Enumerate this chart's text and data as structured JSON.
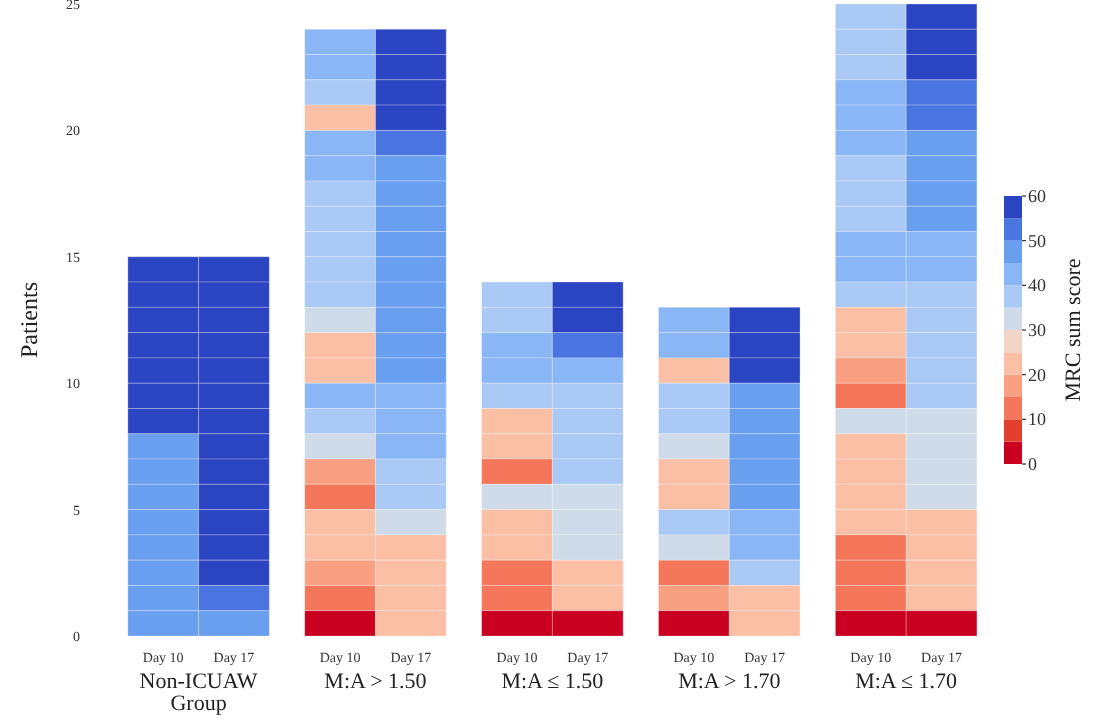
{
  "chart_data": {
    "type": "heatmap",
    "ylabel": "Patients",
    "clabel": "MRC sum score",
    "categories": [
      "Day 10",
      "Day 17",
      "Day 10",
      "Day 17",
      "Day 10",
      "Day 17",
      "Day 10",
      "Day 17",
      "Day 10",
      "Day 17"
    ],
    "annotations": [
      "Non-ICUAW Group",
      "M:A > 1.50",
      "M:A ≤ 1.50",
      "M:A > 1.70",
      "M:A ≤ 1.70"
    ],
    "ylim": [
      0,
      25
    ],
    "yticks": [
      0,
      5,
      10,
      15,
      20,
      25
    ],
    "clim": [
      0,
      60
    ],
    "cticks": [
      0,
      10,
      20,
      30,
      40,
      50,
      60
    ],
    "cells": [
      [
        null,
        null,
        null,
        null,
        null,
        null,
        null,
        null,
        37.5,
        57.5
      ],
      [
        null,
        null,
        42.5,
        57.5,
        null,
        null,
        null,
        null,
        37.5,
        57.5
      ],
      [
        null,
        null,
        42.5,
        57.5,
        null,
        null,
        null,
        null,
        37.5,
        57.5
      ],
      [
        null,
        null,
        37.5,
        57.5,
        null,
        null,
        null,
        null,
        42.5,
        52.5
      ],
      [
        null,
        null,
        22.5,
        57.5,
        null,
        null,
        null,
        null,
        42.5,
        52.5
      ],
      [
        null,
        null,
        42.5,
        52.5,
        null,
        null,
        null,
        null,
        42.5,
        47.5
      ],
      [
        null,
        null,
        42.5,
        47.5,
        null,
        null,
        null,
        null,
        37.5,
        47.5
      ],
      [
        null,
        null,
        37.5,
        47.5,
        null,
        null,
        null,
        null,
        37.5,
        47.5
      ],
      [
        null,
        null,
        37.5,
        47.5,
        null,
        null,
        null,
        null,
        37.5,
        47.5
      ],
      [
        null,
        null,
        37.5,
        47.5,
        null,
        null,
        null,
        null,
        42.5,
        42.5
      ],
      [
        57.5,
        57.5,
        37.5,
        47.5,
        null,
        null,
        null,
        null,
        42.5,
        42.5
      ],
      [
        57.5,
        57.5,
        37.5,
        47.5,
        37.5,
        57.5,
        null,
        null,
        37.5,
        37.5
      ],
      [
        57.5,
        57.5,
        32.5,
        47.5,
        37.5,
        57.5,
        42.5,
        57.5,
        22.5,
        37.5
      ],
      [
        57.5,
        57.5,
        22.5,
        47.5,
        42.5,
        52.5,
        42.5,
        57.5,
        22.5,
        37.5
      ],
      [
        57.5,
        57.5,
        22.5,
        47.5,
        42.5,
        42.5,
        22.5,
        57.5,
        17.5,
        37.5
      ],
      [
        57.5,
        57.5,
        42.5,
        42.5,
        37.5,
        37.5,
        37.5,
        47.5,
        12.5,
        37.5
      ],
      [
        57.5,
        57.5,
        37.5,
        42.5,
        22.5,
        37.5,
        37.5,
        47.5,
        32.5,
        32.5
      ],
      [
        47.5,
        57.5,
        32.5,
        42.5,
        22.5,
        37.5,
        32.5,
        47.5,
        22.5,
        32.5
      ],
      [
        47.5,
        57.5,
        17.5,
        37.5,
        12.5,
        37.5,
        22.5,
        47.5,
        22.5,
        32.5
      ],
      [
        47.5,
        57.5,
        12.5,
        37.5,
        32.5,
        32.5,
        22.5,
        47.5,
        22.5,
        32.5
      ],
      [
        47.5,
        57.5,
        22.5,
        32.5,
        22.5,
        32.5,
        37.5,
        42.5,
        22.5,
        22.5
      ],
      [
        47.5,
        57.5,
        22.5,
        22.5,
        22.5,
        32.5,
        32.5,
        42.5,
        12.5,
        22.5
      ],
      [
        47.5,
        57.5,
        17.5,
        22.5,
        12.5,
        22.5,
        12.5,
        37.5,
        12.5,
        22.5
      ],
      [
        47.5,
        52.5,
        12.5,
        22.5,
        12.5,
        22.5,
        17.5,
        22.5,
        12.5,
        22.5
      ],
      [
        47.5,
        47.5,
        2.5,
        22.5,
        2.5,
        2.5,
        2.5,
        22.5,
        2.5,
        2.5
      ]
    ]
  }
}
